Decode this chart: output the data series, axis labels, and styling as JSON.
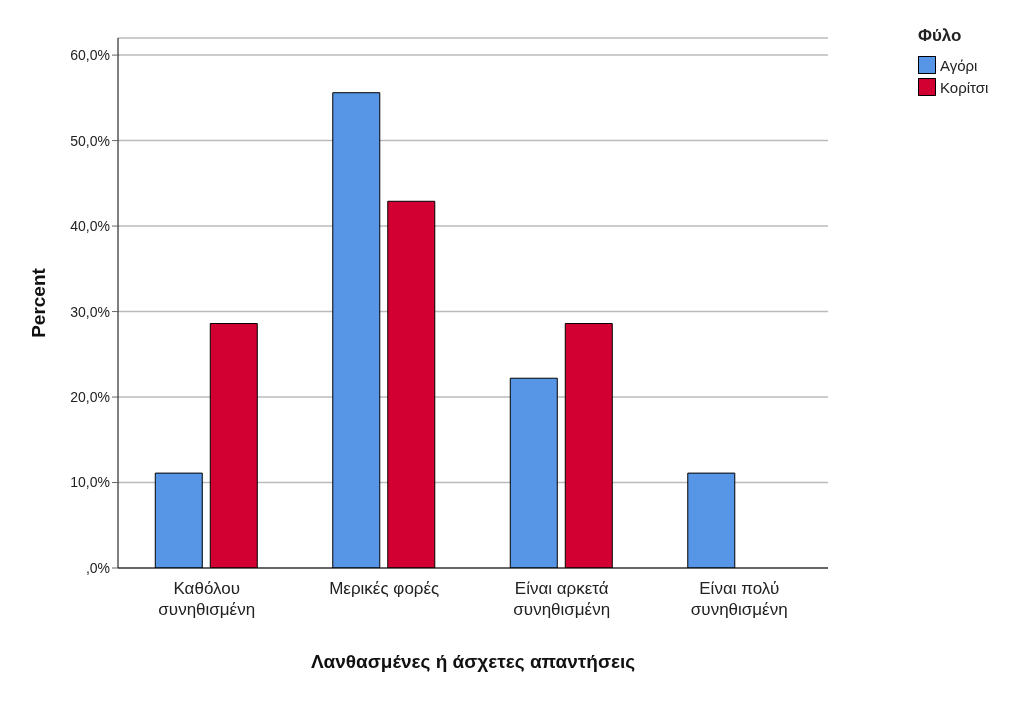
{
  "chart_data": {
    "type": "bar",
    "xlabel": "Λανθασμένες ή άσχετες απαντήσεις",
    "ylabel": "Percent",
    "legend_title": "Φύλο",
    "legend": "top right",
    "grid": "y",
    "categories": [
      "Καθόλου συνηθισμένη",
      "Μερικές φορές",
      "Είναι αρκετά συνηθισμένη",
      "Είναι πολύ συνηθισμένη"
    ],
    "series": [
      {
        "name": "Αγόρι",
        "color": "#5796e6",
        "values": [
          11.1,
          55.6,
          22.2,
          11.1
        ]
      },
      {
        "name": "Κορίτσι",
        "color": "#d20032",
        "values": [
          28.6,
          42.9,
          28.6,
          0
        ]
      }
    ],
    "ylim": [
      0,
      62
    ],
    "yticks": [
      {
        "value": 0,
        "label": ",0%"
      },
      {
        "value": 10,
        "label": "10,0%"
      },
      {
        "value": 20,
        "label": "20,0%"
      },
      {
        "value": 30,
        "label": "30,0%"
      },
      {
        "value": 40,
        "label": "40,0%"
      },
      {
        "value": 50,
        "label": "50,0%"
      },
      {
        "value": 60,
        "label": "60,0%"
      }
    ]
  }
}
